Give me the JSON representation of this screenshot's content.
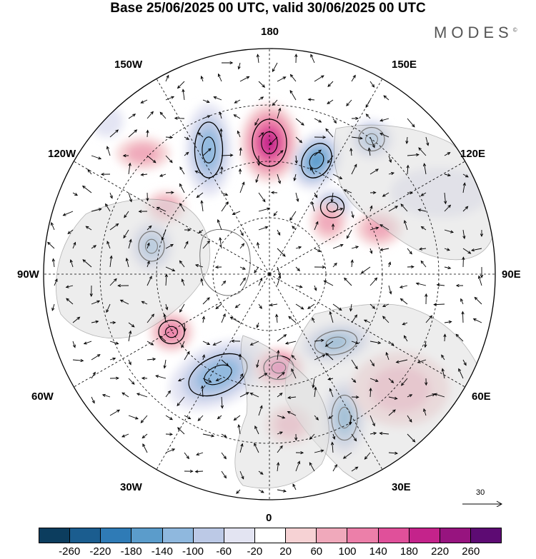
{
  "title": "Base 25/06/2025 00 UTC, valid 30/06/2025 00 UTC",
  "logo": {
    "text": "MODES",
    "mark": "©"
  },
  "longitude_labels": {
    "top": "180",
    "bottom": "0",
    "left": "90W",
    "right": "90E",
    "upper_left_1": "150W",
    "upper_left_2": "120W",
    "upper_right_1": "150E",
    "upper_right_2": "120E",
    "lower_left_1": "60W",
    "lower_left_2": "30W",
    "lower_right_1": "60E",
    "lower_right_2": "30E"
  },
  "reference_vector": {
    "label": "30"
  },
  "colorbar": {
    "colors": [
      "#0c3d5e",
      "#1b5d8f",
      "#2f7bb6",
      "#5b9ccb",
      "#8fb8de",
      "#bcc9e6",
      "#e3e4f2",
      "#ffffff",
      "#f6d2d4",
      "#f0a9bb",
      "#ec7fa9",
      "#e0509a",
      "#c4238b",
      "#97147f",
      "#5d0b73"
    ],
    "tick_labels": [
      "-260",
      "-220",
      "-180",
      "-140",
      "-100",
      "-60",
      "-20",
      "20",
      "60",
      "100",
      "140",
      "180",
      "220",
      "260"
    ]
  },
  "anomalies": [
    {
      "sign": "pos",
      "level": 5
    },
    {
      "sign": "neg",
      "level": 3
    },
    {
      "sign": "neg",
      "level": 4
    },
    {
      "sign": "neg",
      "level": 3
    },
    {
      "sign": "neg",
      "level": 3
    },
    {
      "sign": "neg",
      "level": 3
    },
    {
      "sign": "neg",
      "level": 4
    },
    {
      "sign": "pos",
      "level": 4
    },
    {
      "sign": "neg",
      "level": 4
    },
    {
      "sign": "neg",
      "level": 3
    },
    {
      "sign": "pos",
      "level": 3
    },
    {
      "sign": "pos",
      "level": 2
    },
    {
      "sign": "pos",
      "level": 2
    },
    {
      "sign": "pos",
      "level": 2
    },
    {
      "sign": "pos",
      "level": 2
    },
    {
      "sign": "pos",
      "level": 2
    },
    {
      "sign": "neg",
      "level": 1
    },
    {
      "sign": "neg",
      "level": 1
    },
    {
      "sign": "pos",
      "level": 2
    }
  ]
}
